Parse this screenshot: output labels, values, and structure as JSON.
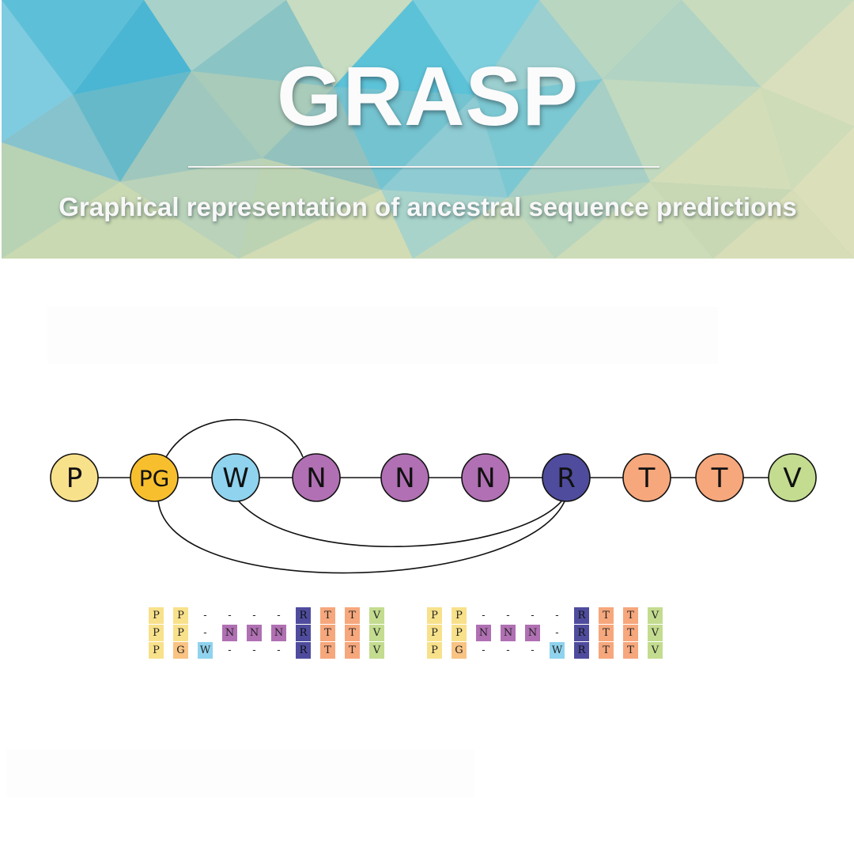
{
  "banner": {
    "title": "GRASP",
    "subtitle": "Graphical representation of ancestral sequence predictions"
  },
  "colors": {
    "P": "#f8e18b",
    "PG": "#f7bf2e",
    "G": "#f9c383",
    "W": "#8fd3ee",
    "N": "#b070b3",
    "R": "#4f4c9e",
    "T": "#f6a77c",
    "V": "#c3dc8f",
    "-": "transparent"
  },
  "graph": {
    "nodes": [
      {
        "id": "n0",
        "label": "P",
        "color_key": "P"
      },
      {
        "id": "n1",
        "label": "PG",
        "color_key": "PG"
      },
      {
        "id": "n2",
        "label": "W",
        "color_key": "W"
      },
      {
        "id": "n3",
        "label": "N",
        "color_key": "N"
      },
      {
        "id": "n4",
        "label": "N",
        "color_key": "N"
      },
      {
        "id": "n5",
        "label": "N",
        "color_key": "N"
      },
      {
        "id": "n6",
        "label": "R",
        "color_key": "R"
      },
      {
        "id": "n7",
        "label": "T",
        "color_key": "T"
      },
      {
        "id": "n8",
        "label": "T",
        "color_key": "T"
      },
      {
        "id": "n9",
        "label": "V",
        "color_key": "V"
      }
    ],
    "edges": [
      {
        "from": "n0",
        "to": "n1"
      },
      {
        "from": "n1",
        "to": "n2"
      },
      {
        "from": "n2",
        "to": "n3"
      },
      {
        "from": "n3",
        "to": "n4"
      },
      {
        "from": "n4",
        "to": "n5"
      },
      {
        "from": "n5",
        "to": "n6"
      },
      {
        "from": "n6",
        "to": "n7"
      },
      {
        "from": "n7",
        "to": "n8"
      },
      {
        "from": "n8",
        "to": "n9"
      },
      {
        "from": "n1",
        "to": "n3"
      },
      {
        "from": "n1",
        "to": "n6"
      },
      {
        "from": "n2",
        "to": "n6"
      }
    ]
  },
  "alignments": [
    {
      "rows": [
        [
          "P",
          "P",
          "-",
          "-",
          "-",
          "-",
          "R",
          "T",
          "T",
          "V"
        ],
        [
          "P",
          "P",
          "-",
          "N",
          "N",
          "N",
          "R",
          "T",
          "T",
          "V"
        ],
        [
          "P",
          "G",
          "W",
          "-",
          "-",
          "-",
          "R",
          "T",
          "T",
          "V"
        ]
      ]
    },
    {
      "rows": [
        [
          "P",
          "P",
          "-",
          "-",
          "-",
          "-",
          "R",
          "T",
          "T",
          "V"
        ],
        [
          "P",
          "P",
          "N",
          "N",
          "N",
          "-",
          "R",
          "T",
          "T",
          "V"
        ],
        [
          "P",
          "G",
          "-",
          "-",
          "-",
          "W",
          "R",
          "T",
          "T",
          "V"
        ]
      ]
    }
  ]
}
